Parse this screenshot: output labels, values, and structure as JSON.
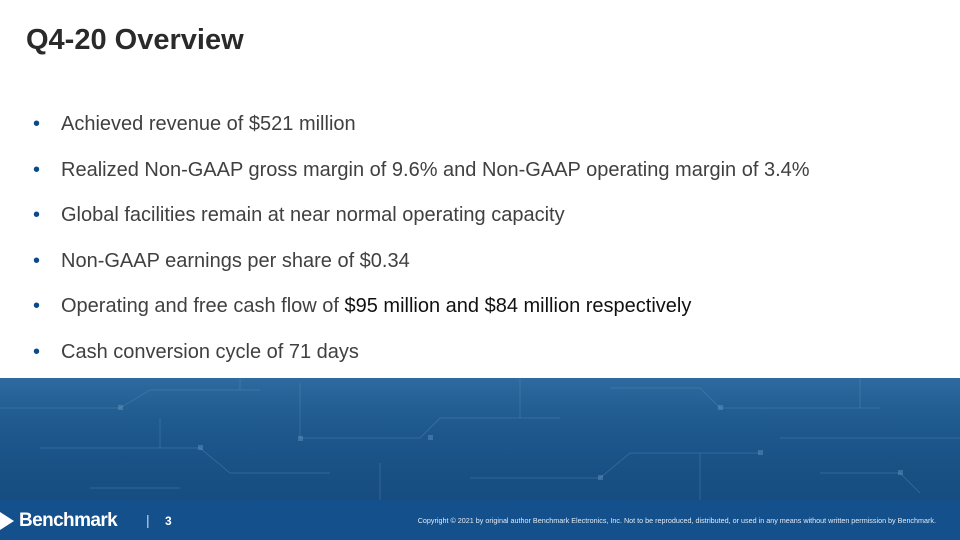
{
  "slide": {
    "title": "Q4-20 Overview"
  },
  "bullets": [
    {
      "text": "Achieved revenue of $521 million",
      "emphasis": ""
    },
    {
      "text": "Realized Non-GAAP gross margin of 9.6% and Non-GAAP operating margin of 3.4%",
      "emphasis": ""
    },
    {
      "text": "Global facilities remain at near normal operating capacity",
      "emphasis": ""
    },
    {
      "text": "Non-GAAP earnings per share of $0.34",
      "emphasis": ""
    },
    {
      "text": "Operating and free cash flow of ",
      "emphasis": "$95 million and $84 million respectively"
    },
    {
      "text": "Cash conversion cycle of 71 days",
      "emphasis": ""
    }
  ],
  "footer": {
    "logo_text": "Benchmark",
    "divider": "|",
    "page_number": "3",
    "copyright": "Copyright © 2021 by original author Benchmark Electronics, Inc. Not to be reproduced, distributed, or used in any means without written permission by Benchmark."
  },
  "colors": {
    "bullet": "#0a4a8a",
    "band": "#1a5387",
    "footer": "#14508c",
    "text": "#404040"
  }
}
